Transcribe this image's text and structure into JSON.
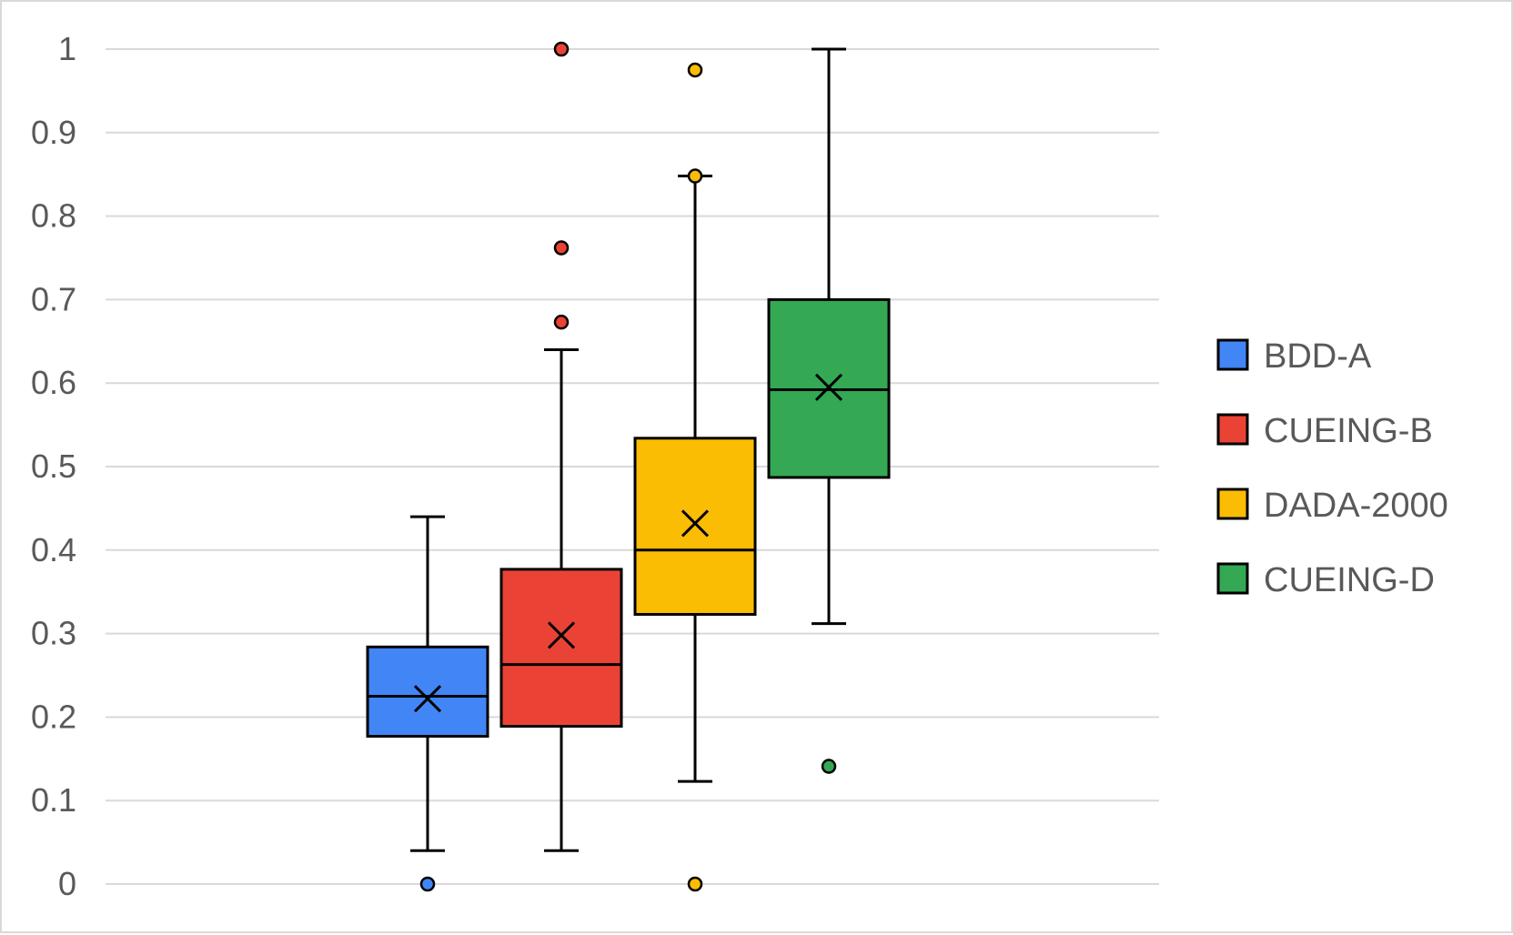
{
  "chart_data": {
    "type": "box",
    "ylim": [
      0,
      1
    ],
    "yticks": [
      "0",
      "0.1",
      "0.2",
      "0.3",
      "0.4",
      "0.5",
      "0.6",
      "0.7",
      "0.8",
      "0.9",
      "1"
    ],
    "grid": true,
    "legend_position": "right",
    "series": [
      {
        "name": "BDD-A",
        "color": "#4285f4",
        "whisker_low": 0.04,
        "q1": 0.177,
        "median": 0.225,
        "q3": 0.284,
        "whisker_high": 0.44,
        "mean": 0.222,
        "outliers": [
          0.0
        ]
      },
      {
        "name": "CUEING-B",
        "color": "#ea4335",
        "whisker_low": 0.04,
        "q1": 0.189,
        "median": 0.263,
        "q3": 0.377,
        "whisker_high": 0.64,
        "mean": 0.298,
        "outliers": [
          0.673,
          0.762,
          1.0
        ]
      },
      {
        "name": "DADA-2000",
        "color": "#fbbc04",
        "whisker_low": 0.123,
        "q1": 0.323,
        "median": 0.4,
        "q3": 0.534,
        "whisker_high": 0.848,
        "mean": 0.432,
        "outliers": [
          0.0,
          0.848,
          0.975
        ]
      },
      {
        "name": "CUEING-D",
        "color": "#34a853",
        "whisker_low": 0.312,
        "q1": 0.487,
        "median": 0.592,
        "q3": 0.7,
        "whisker_high": 1.0,
        "mean": 0.595,
        "outliers": [
          0.141
        ]
      }
    ]
  }
}
